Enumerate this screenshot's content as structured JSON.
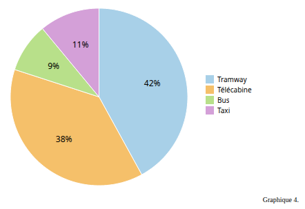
{
  "chart_data": {
    "type": "pie",
    "categories": [
      "Tramway",
      "Télécabine",
      "Bus",
      "Taxi"
    ],
    "values": [
      42,
      38,
      9,
      11
    ],
    "value_labels": [
      "42%",
      "38%",
      "9%",
      "11%"
    ],
    "colors": [
      "#A8D0E8",
      "#F5C06A",
      "#B8E08A",
      "#D4A0D8"
    ],
    "data_labels": true,
    "legend": "right",
    "caption": "Graphique 4."
  }
}
